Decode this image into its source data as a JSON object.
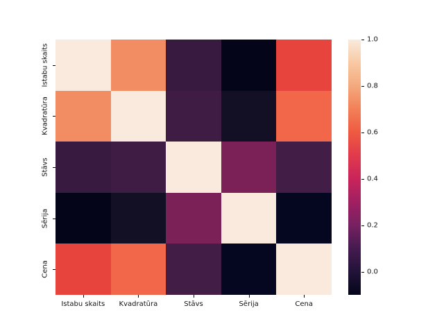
{
  "figure": {
    "background": "#ffffff",
    "text_color": "#111111"
  },
  "chart_data": {
    "type": "heatmap",
    "title": "",
    "xlabel": "",
    "ylabel": "",
    "categories": [
      "Istabu skaits",
      "Kvadratūra",
      "Stāvs",
      "Sērija",
      "Cena"
    ],
    "matrix": [
      [
        1.0,
        0.72,
        0.08,
        -0.1,
        0.55
      ],
      [
        0.72,
        1.0,
        0.1,
        -0.04,
        0.63
      ],
      [
        0.08,
        0.1,
        1.0,
        0.22,
        0.11
      ],
      [
        -0.1,
        -0.04,
        0.22,
        1.0,
        -0.09
      ],
      [
        0.55,
        0.63,
        0.11,
        -0.09,
        1.0
      ]
    ],
    "cell_colors": [
      [
        "#FAEADD",
        "#F28C63",
        "#381A40",
        "#05051A",
        "#E8443E"
      ],
      [
        "#F28C63",
        "#FAEADD",
        "#3E1C43",
        "#130F24",
        "#F2674A"
      ],
      [
        "#381A40",
        "#3E1C43",
        "#FAEADD",
        "#7C2058",
        "#421D45"
      ],
      [
        "#05051A",
        "#130F24",
        "#7C2058",
        "#FAEADD",
        "#050720"
      ],
      [
        "#E8443E",
        "#F2674A",
        "#421D45",
        "#050720",
        "#FAEADD"
      ]
    ],
    "colormap": "rocket",
    "vmin": -0.1,
    "vmax": 1.0,
    "grid": false,
    "legend_position": "colorbar-right",
    "colorbar": {
      "ticks": [
        {
          "label": "1.0",
          "value": 1.0
        },
        {
          "label": "0.8",
          "value": 0.8
        },
        {
          "label": "0.6",
          "value": 0.6
        },
        {
          "label": "0.4",
          "value": 0.4
        },
        {
          "label": "0.2",
          "value": 0.2
        },
        {
          "label": "0.0",
          "value": 0.0
        }
      ],
      "gradient_stops": [
        {
          "value": -0.1,
          "color": "#03051A"
        },
        {
          "value": 0.0,
          "color": "#221338"
        },
        {
          "value": 0.1,
          "color": "#451A50"
        },
        {
          "value": 0.2,
          "color": "#772161"
        },
        {
          "value": 0.3,
          "color": "#A02062"
        },
        {
          "value": 0.4,
          "color": "#C9245A"
        },
        {
          "value": 0.5,
          "color": "#E13A4C"
        },
        {
          "value": 0.6,
          "color": "#EE5A41"
        },
        {
          "value": 0.7,
          "color": "#F28057"
        },
        {
          "value": 0.8,
          "color": "#F4A97E"
        },
        {
          "value": 0.9,
          "color": "#F8C9A3"
        },
        {
          "value": 1.0,
          "color": "#F9EBDD"
        }
      ]
    }
  }
}
